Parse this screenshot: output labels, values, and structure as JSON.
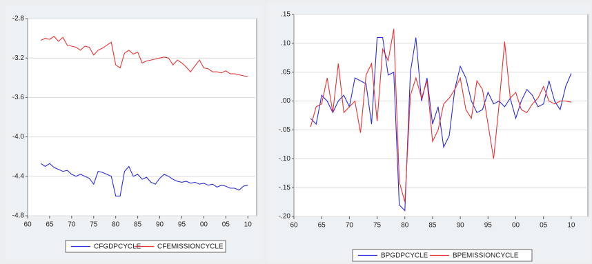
{
  "chart_data": [
    {
      "type": "line",
      "x": [
        63,
        64,
        65,
        66,
        67,
        68,
        69,
        70,
        71,
        72,
        73,
        74,
        75,
        76,
        77,
        78,
        79,
        80,
        81,
        82,
        83,
        84,
        85,
        86,
        87,
        88,
        89,
        90,
        91,
        92,
        93,
        94,
        95,
        96,
        97,
        98,
        99,
        100,
        101,
        102,
        103,
        104,
        105,
        106,
        107,
        108,
        109,
        110
      ],
      "series": [
        {
          "name": "CFGDPCYCLE",
          "color": "#2b2bdc",
          "values": [
            -4.27,
            -4.3,
            -4.27,
            -4.31,
            -4.33,
            -4.35,
            -4.34,
            -4.38,
            -4.4,
            -4.38,
            -4.4,
            -4.42,
            -4.48,
            -4.35,
            -4.36,
            -4.38,
            -4.4,
            -4.6,
            -4.6,
            -4.35,
            -4.3,
            -4.4,
            -4.38,
            -4.43,
            -4.41,
            -4.46,
            -4.48,
            -4.42,
            -4.38,
            -4.4,
            -4.43,
            -4.45,
            -4.46,
            -4.45,
            -4.47,
            -4.46,
            -4.48,
            -4.47,
            -4.49,
            -4.48,
            -4.51,
            -4.49,
            -4.5,
            -4.52,
            -4.52,
            -4.54,
            -4.5,
            -4.49
          ]
        },
        {
          "name": "CFEMISSIONCYCLE",
          "color": "#e83232",
          "values": [
            -3.02,
            -3.0,
            -3.01,
            -2.98,
            -3.03,
            -2.99,
            -3.07,
            -3.08,
            -3.09,
            -3.12,
            -3.08,
            -3.09,
            -3.17,
            -3.12,
            -3.1,
            -3.07,
            -3.04,
            -3.27,
            -3.3,
            -3.15,
            -3.12,
            -3.16,
            -3.14,
            -3.25,
            -3.23,
            -3.22,
            -3.21,
            -3.2,
            -3.19,
            -3.2,
            -3.27,
            -3.22,
            -3.25,
            -3.29,
            -3.34,
            -3.28,
            -3.22,
            -3.3,
            -3.31,
            -3.34,
            -3.34,
            -3.35,
            -3.33,
            -3.36,
            -3.36,
            -3.37,
            -3.38,
            -3.39
          ]
        }
      ],
      "xlim": [
        60,
        112
      ],
      "xticks": [
        60,
        65,
        70,
        75,
        80,
        85,
        90,
        95,
        {
          "value": 100,
          "label": "00"
        },
        {
          "value": 105,
          "label": "05"
        },
        {
          "value": 110,
          "label": "10"
        }
      ],
      "ylim": [
        -4.8,
        -2.8
      ],
      "yticks": [
        -2.8,
        -3.2,
        -3.6,
        {
          "value": -4,
          "label": "-4.0"
        },
        -4.4,
        -4.8
      ],
      "grid": true
    },
    {
      "type": "line",
      "x": [
        63,
        64,
        65,
        66,
        67,
        68,
        69,
        70,
        71,
        72,
        73,
        74,
        75,
        76,
        77,
        78,
        79,
        80,
        81,
        82,
        83,
        84,
        85,
        86,
        87,
        88,
        89,
        90,
        91,
        92,
        93,
        94,
        95,
        96,
        97,
        98,
        99,
        100,
        101,
        102,
        103,
        104,
        105,
        106,
        107,
        108,
        109,
        110
      ],
      "series": [
        {
          "name": "BPGDPCYCLE",
          "color": "#2b2bdc",
          "values": [
            -0.03,
            -0.04,
            0.01,
            0.0,
            -0.02,
            0.0,
            0.01,
            -0.01,
            0.04,
            0.035,
            0.03,
            -0.04,
            0.11,
            0.11,
            0.045,
            0.05,
            -0.18,
            -0.19,
            0.05,
            0.11,
            0.0,
            0.04,
            -0.04,
            -0.01,
            -0.08,
            -0.06,
            0.02,
            0.06,
            0.04,
            0.0,
            -0.02,
            -0.015,
            0.015,
            -0.005,
            0.0,
            -0.01,
            0.005,
            -0.03,
            0.0,
            0.02,
            0.01,
            -0.01,
            -0.005,
            0.035,
            0.0,
            -0.015,
            0.025,
            0.048
          ]
        },
        {
          "name": "BPEMISSIONCYCLE",
          "color": "#e83232",
          "values": [
            -0.045,
            -0.01,
            -0.005,
            0.04,
            -0.02,
            0.065,
            -0.02,
            -0.01,
            0.0,
            -0.055,
            0.045,
            0.065,
            -0.035,
            0.09,
            0.07,
            0.125,
            -0.14,
            -0.175,
            0.01,
            0.04,
            0.005,
            0.035,
            -0.07,
            -0.05,
            -0.005,
            0.005,
            0.02,
            0.04,
            -0.015,
            -0.03,
            0.035,
            0.02,
            -0.04,
            -0.1,
            -0.005,
            0.103,
            0.005,
            0.015,
            -0.015,
            -0.02,
            -0.005,
            0.005,
            0.025,
            0.0,
            -0.005,
            0.0,
            0.0,
            -0.002
          ]
        }
      ],
      "xlim": [
        60,
        113
      ],
      "xticks": [
        60,
        65,
        70,
        75,
        80,
        85,
        90,
        95,
        {
          "value": 100,
          "label": "00"
        },
        {
          "value": 105,
          "label": "05"
        },
        {
          "value": 110,
          "label": "10"
        }
      ],
      "ylim": [
        -0.2,
        0.15
      ],
      "yticks": [
        {
          "value": 0.15,
          "label": ".15"
        },
        {
          "value": 0.1,
          "label": ".10"
        },
        {
          "value": 0.05,
          "label": ".05"
        },
        {
          "value": 0,
          "label": ".00"
        },
        {
          "value": -0.05,
          "label": "-.05"
        },
        {
          "value": -0.1,
          "label": "-.10"
        },
        {
          "value": -0.15,
          "label": "-.15"
        },
        {
          "value": -0.2,
          "label": "-.20"
        }
      ],
      "grid": true
    }
  ]
}
